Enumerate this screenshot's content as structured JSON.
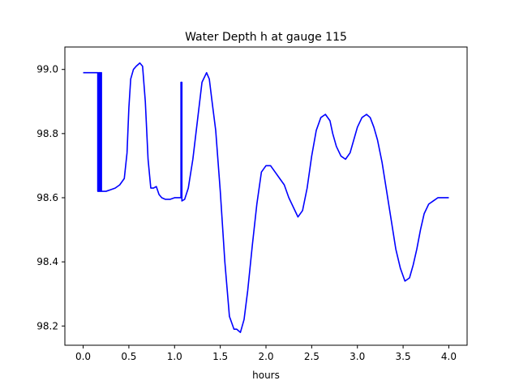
{
  "chart_data": {
    "type": "line",
    "title": "Water Depth h at gauge 115",
    "xlabel": "hours",
    "ylabel": "",
    "xlim": [
      -0.2,
      4.2
    ],
    "ylim": [
      98.14,
      99.07
    ],
    "xticks": [
      0.0,
      0.5,
      1.0,
      1.5,
      2.0,
      2.5,
      3.0,
      3.5,
      4.0
    ],
    "xtick_labels": [
      "0.0",
      "0.5",
      "1.0",
      "1.5",
      "2.0",
      "2.5",
      "3.0",
      "3.5",
      "4.0"
    ],
    "yticks": [
      98.2,
      98.4,
      98.6,
      98.8,
      99.0
    ],
    "ytick_labels": [
      "98.2",
      "98.4",
      "98.6",
      "98.8",
      "99.0"
    ],
    "grid": false,
    "series": [
      {
        "color": "#0000ff",
        "x": [
          0.0,
          0.16,
          0.16,
          0.17,
          0.17,
          0.18,
          0.18,
          0.19,
          0.19,
          0.2,
          0.2,
          0.21,
          0.21,
          0.25,
          0.3,
          0.35,
          0.4,
          0.45,
          0.48,
          0.5,
          0.52,
          0.55,
          0.58,
          0.62,
          0.65,
          0.68,
          0.71,
          0.74,
          0.77,
          0.8,
          0.83,
          0.86,
          0.9,
          0.95,
          1.0,
          1.04,
          1.07,
          1.07,
          1.08,
          1.08,
          1.11,
          1.15,
          1.2,
          1.25,
          1.3,
          1.35,
          1.38,
          1.41,
          1.45,
          1.5,
          1.55,
          1.6,
          1.65,
          1.68,
          1.72,
          1.76,
          1.8,
          1.85,
          1.9,
          1.95,
          2.0,
          2.05,
          2.1,
          2.15,
          2.2,
          2.25,
          2.3,
          2.35,
          2.4,
          2.45,
          2.5,
          2.55,
          2.6,
          2.65,
          2.7,
          2.73,
          2.77,
          2.82,
          2.87,
          2.92,
          2.96,
          3.0,
          3.05,
          3.1,
          3.14,
          3.18,
          3.22,
          3.27,
          3.32,
          3.37,
          3.42,
          3.47,
          3.52,
          3.57,
          3.61,
          3.65,
          3.69,
          3.73,
          3.78,
          3.83,
          3.88,
          3.93,
          3.98,
          4.0
        ],
        "y": [
          98.99,
          98.99,
          98.62,
          98.62,
          98.99,
          98.99,
          98.62,
          98.62,
          98.99,
          98.99,
          98.62,
          98.62,
          98.62,
          98.62,
          98.625,
          98.63,
          98.64,
          98.66,
          98.74,
          98.88,
          98.97,
          99.0,
          99.01,
          99.02,
          99.01,
          98.9,
          98.72,
          98.63,
          98.63,
          98.635,
          98.61,
          98.6,
          98.595,
          98.595,
          98.6,
          98.6,
          98.6,
          98.96,
          98.96,
          98.59,
          98.595,
          98.63,
          98.72,
          98.84,
          98.96,
          98.99,
          98.97,
          98.9,
          98.81,
          98.62,
          98.4,
          98.23,
          98.19,
          98.19,
          98.18,
          98.22,
          98.31,
          98.45,
          98.58,
          98.68,
          98.7,
          98.7,
          98.68,
          98.66,
          98.64,
          98.6,
          98.57,
          98.54,
          98.56,
          98.63,
          98.73,
          98.81,
          98.85,
          98.86,
          98.84,
          98.8,
          98.76,
          98.73,
          98.72,
          98.74,
          98.78,
          98.82,
          98.85,
          98.86,
          98.85,
          98.82,
          98.78,
          98.71,
          98.62,
          98.53,
          98.44,
          98.38,
          98.34,
          98.35,
          98.39,
          98.44,
          98.5,
          98.55,
          98.58,
          98.59,
          98.6,
          98.6,
          98.6,
          98.6
        ]
      }
    ]
  }
}
